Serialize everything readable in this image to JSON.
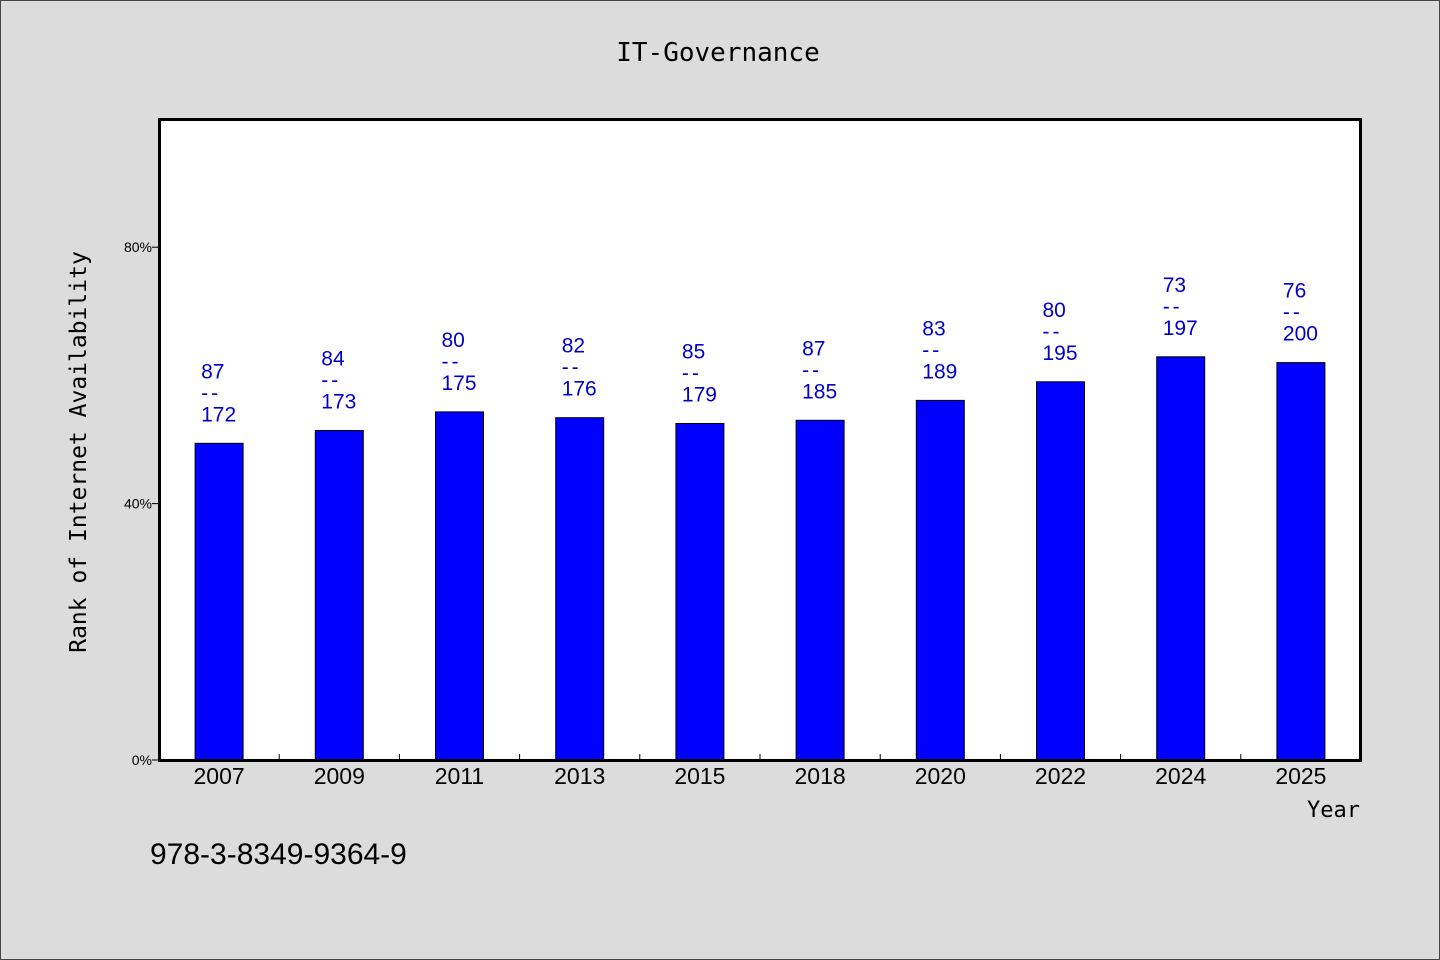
{
  "colors": {
    "page_background": "#dcdcdc",
    "page_border": "#444444",
    "plot_background": "#ffffff",
    "frame": "#000000",
    "bar_fill": "#0000ff",
    "bar_outline": "#000000",
    "data_label": "#0000cc"
  },
  "chart_data": {
    "type": "bar",
    "title": "IT-Governance",
    "xlabel": "Year",
    "ylabel": "Rank of Internet Availability",
    "categories": [
      "2007",
      "2009",
      "2011",
      "2013",
      "2015",
      "2018",
      "2020",
      "2022",
      "2024",
      "2025"
    ],
    "values": [
      49.4,
      51.4,
      54.3,
      53.4,
      52.5,
      53.0,
      56.1,
      59.0,
      62.9,
      62.0
    ],
    "ylim": [
      0,
      100
    ],
    "yticks": [
      0,
      40,
      80
    ],
    "ytick_labels": [
      "0%",
      "40%",
      "80%"
    ],
    "data_labels": [
      [
        "87",
        "--",
        "172"
      ],
      [
        "84",
        "--",
        "173"
      ],
      [
        "80",
        "--",
        "175"
      ],
      [
        "82",
        "--",
        "176"
      ],
      [
        "85",
        "--",
        "179"
      ],
      [
        "87",
        "--",
        "185"
      ],
      [
        "83",
        "--",
        "189"
      ],
      [
        "80",
        "--",
        "195"
      ],
      [
        "73",
        "--",
        "197"
      ],
      [
        "76",
        "--",
        "200"
      ]
    ],
    "grid": false
  },
  "footer": {
    "text": "978-3-8349-9364-9"
  }
}
